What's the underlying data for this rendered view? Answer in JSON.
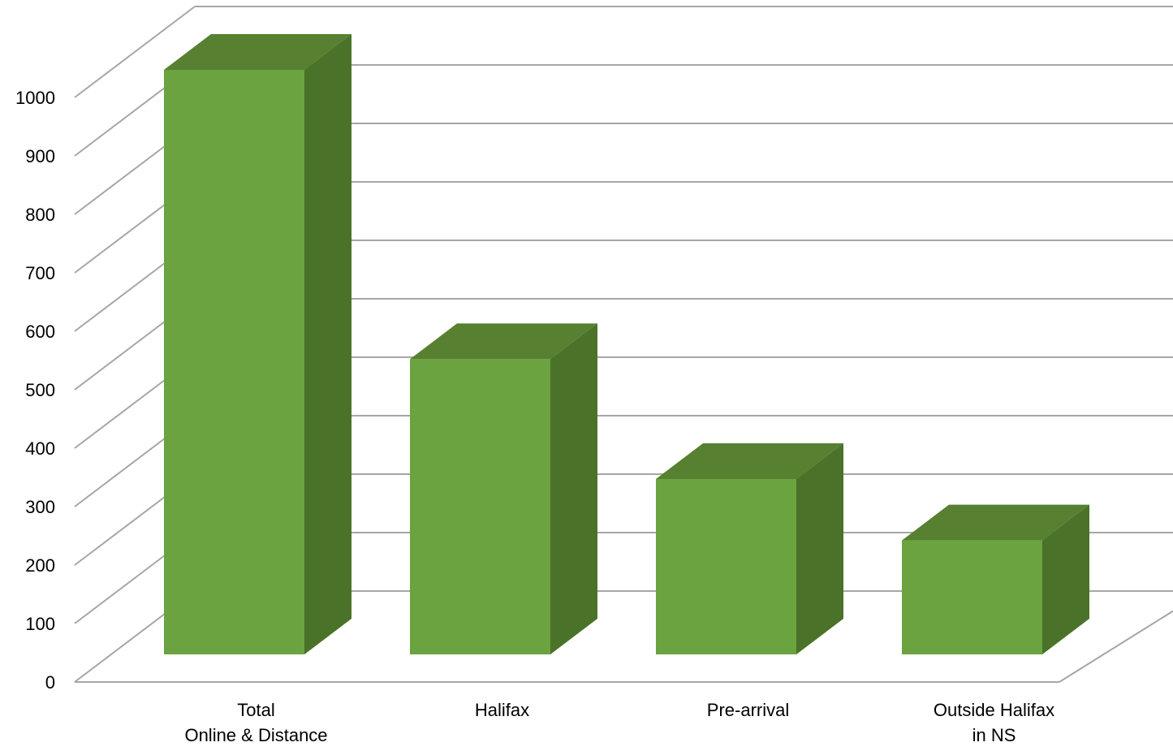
{
  "chart_data": {
    "type": "bar",
    "style": "3d-column",
    "categories": [
      [
        "Total",
        "Online & Distance"
      ],
      [
        "Halifax"
      ],
      [
        "Pre-arrival"
      ],
      [
        "Outside Halifax",
        "in NS"
      ]
    ],
    "values": [
      1000,
      505,
      300,
      195
    ],
    "ylim": [
      0,
      1000
    ],
    "yticks": [
      0,
      100,
      200,
      300,
      400,
      500,
      600,
      700,
      800,
      900,
      1000
    ],
    "grid": true,
    "legend": "none",
    "title": "",
    "xlabel": "",
    "ylabel": ""
  },
  "colors": {
    "bar_front": "#6aa33f",
    "bar_side": "#4a7228",
    "bar_top": "#578030",
    "gridline": "#a6a6a6",
    "text": "#000000"
  }
}
